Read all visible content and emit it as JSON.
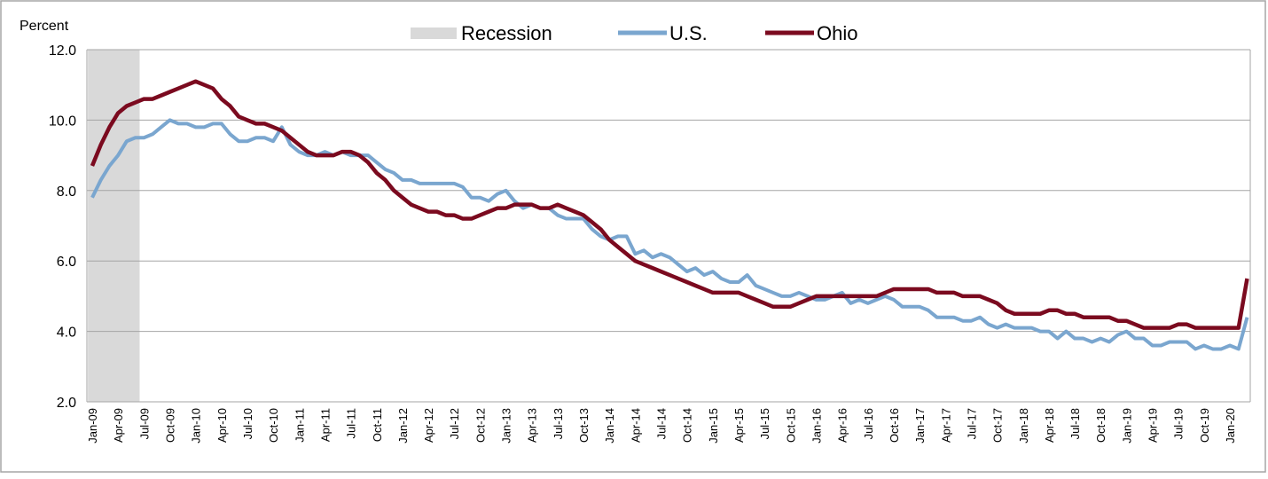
{
  "chart_data": {
    "type": "line",
    "y_axis_label": "Percent",
    "categories": [
      "Jan-09",
      null,
      null,
      "Apr-09",
      null,
      null,
      "Jul-09",
      null,
      null,
      "Oct-09",
      null,
      null,
      "Jan-10",
      null,
      null,
      "Apr-10",
      null,
      null,
      "Jul-10",
      null,
      null,
      "Oct-10",
      null,
      null,
      "Jan-11",
      null,
      null,
      "Apr-11",
      null,
      null,
      "Jul-11",
      null,
      null,
      "Oct-11",
      null,
      null,
      "Jan-12",
      null,
      null,
      "Apr-12",
      null,
      null,
      "Jul-12",
      null,
      null,
      "Oct-12",
      null,
      null,
      "Jan-13",
      null,
      null,
      "Apr-13",
      null,
      null,
      "Jul-13",
      null,
      null,
      "Oct-13",
      null,
      null,
      "Jan-14",
      null,
      null,
      "Apr-14",
      null,
      null,
      "Jul-14",
      null,
      null,
      "Oct-14",
      null,
      null,
      "Jan-15",
      null,
      null,
      "Apr-15",
      null,
      null,
      "Jul-15",
      null,
      null,
      "Oct-15",
      null,
      null,
      "Jan-16",
      null,
      null,
      "Apr-16",
      null,
      null,
      "Jul-16",
      null,
      null,
      "Oct-16",
      null,
      null,
      "Jan-17",
      null,
      null,
      "Apr-17",
      null,
      null,
      "Jul-17",
      null,
      null,
      "Oct-17",
      null,
      null,
      "Jan-18",
      null,
      null,
      "Apr-18",
      null,
      null,
      "Jul-18",
      null,
      null,
      "Oct-18",
      null,
      null,
      "Jan-19",
      null,
      null,
      "Apr-19",
      null,
      null,
      "Jul-19",
      null,
      null,
      "Oct-19",
      null,
      null,
      "Jan-20",
      null,
      null
    ],
    "recession": {
      "name": "Recession",
      "color": "#d9d9d9",
      "start": 0,
      "end": 5
    },
    "series": [
      {
        "name": "U.S.",
        "color": "#7aa6cf",
        "values": [
          7.8,
          8.3,
          8.7,
          9.0,
          9.4,
          9.5,
          9.5,
          9.6,
          9.8,
          10.0,
          9.9,
          9.9,
          9.8,
          9.8,
          9.9,
          9.9,
          9.6,
          9.4,
          9.4,
          9.5,
          9.5,
          9.4,
          9.8,
          9.3,
          9.1,
          9.0,
          9.0,
          9.1,
          9.0,
          9.1,
          9.0,
          9.0,
          9.0,
          8.8,
          8.6,
          8.5,
          8.3,
          8.3,
          8.2,
          8.2,
          8.2,
          8.2,
          8.2,
          8.1,
          7.8,
          7.8,
          7.7,
          7.9,
          8.0,
          7.7,
          7.5,
          7.6,
          7.5,
          7.5,
          7.3,
          7.2,
          7.2,
          7.2,
          6.9,
          6.7,
          6.6,
          6.7,
          6.7,
          6.2,
          6.3,
          6.1,
          6.2,
          6.1,
          5.9,
          5.7,
          5.8,
          5.6,
          5.7,
          5.5,
          5.4,
          5.4,
          5.6,
          5.3,
          5.2,
          5.1,
          5.0,
          5.0,
          5.1,
          5.0,
          4.9,
          4.9,
          5.0,
          5.1,
          4.8,
          4.9,
          4.8,
          4.9,
          5.0,
          4.9,
          4.7,
          4.7,
          4.7,
          4.6,
          4.4,
          4.4,
          4.4,
          4.3,
          4.3,
          4.4,
          4.2,
          4.1,
          4.2,
          4.1,
          4.1,
          4.1,
          4.0,
          4.0,
          3.8,
          4.0,
          3.8,
          3.8,
          3.7,
          3.8,
          3.7,
          3.9,
          4.0,
          3.8,
          3.8,
          3.6,
          3.6,
          3.7,
          3.7,
          3.7,
          3.5,
          3.6,
          3.5,
          3.5,
          3.6,
          3.5,
          4.4
        ]
      },
      {
        "name": "Ohio",
        "color": "#7b0a1f",
        "values": [
          8.7,
          9.3,
          9.8,
          10.2,
          10.4,
          10.5,
          10.6,
          10.6,
          10.7,
          10.8,
          10.9,
          11.0,
          11.1,
          11.0,
          10.9,
          10.6,
          10.4,
          10.1,
          10.0,
          9.9,
          9.9,
          9.8,
          9.7,
          9.5,
          9.3,
          9.1,
          9.0,
          9.0,
          9.0,
          9.1,
          9.1,
          9.0,
          8.8,
          8.5,
          8.3,
          8.0,
          7.8,
          7.6,
          7.5,
          7.4,
          7.4,
          7.3,
          7.3,
          7.2,
          7.2,
          7.3,
          7.4,
          7.5,
          7.5,
          7.6,
          7.6,
          7.6,
          7.5,
          7.5,
          7.6,
          7.5,
          7.4,
          7.3,
          7.1,
          6.9,
          6.6,
          6.4,
          6.2,
          6.0,
          5.9,
          5.8,
          5.7,
          5.6,
          5.5,
          5.4,
          5.3,
          5.2,
          5.1,
          5.1,
          5.1,
          5.1,
          5.0,
          4.9,
          4.8,
          4.7,
          4.7,
          4.7,
          4.8,
          4.9,
          5.0,
          5.0,
          5.0,
          5.0,
          5.0,
          5.0,
          5.0,
          5.0,
          5.1,
          5.2,
          5.2,
          5.2,
          5.2,
          5.2,
          5.1,
          5.1,
          5.1,
          5.0,
          5.0,
          5.0,
          4.9,
          4.8,
          4.6,
          4.5,
          4.5,
          4.5,
          4.5,
          4.6,
          4.6,
          4.5,
          4.5,
          4.4,
          4.4,
          4.4,
          4.4,
          4.3,
          4.3,
          4.2,
          4.1,
          4.1,
          4.1,
          4.1,
          4.2,
          4.2,
          4.1,
          4.1,
          4.1,
          4.1,
          4.1,
          4.1,
          5.5
        ]
      }
    ],
    "ylim": [
      2,
      12
    ],
    "yticks": [
      {
        "value": 2,
        "label": "2.0"
      },
      {
        "value": 4,
        "label": "4.0"
      },
      {
        "value": 6,
        "label": "6.0"
      },
      {
        "value": 8,
        "label": "8.0"
      },
      {
        "value": 10,
        "label": "10.0"
      },
      {
        "value": 12,
        "label": "12.0"
      }
    ],
    "grid": true,
    "legend": "top"
  }
}
